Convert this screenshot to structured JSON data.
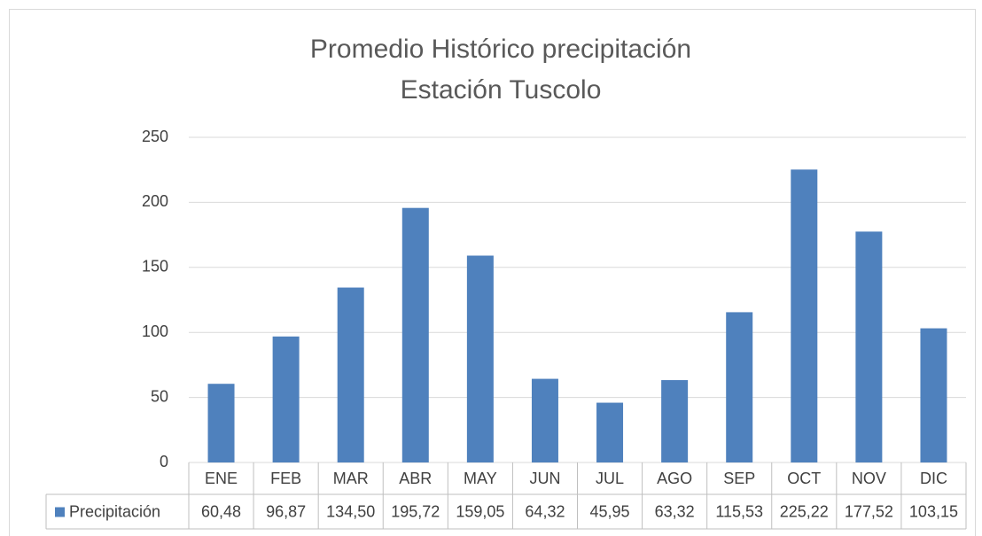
{
  "chart_data": {
    "type": "bar",
    "title_lines": [
      "Promedio Histórico precipitación",
      "Estación Tuscolo"
    ],
    "categories": [
      "ENE",
      "FEB",
      "MAR",
      "ABR",
      "MAY",
      "JUN",
      "JUL",
      "AGO",
      "SEP",
      "OCT",
      "NOV",
      "DIC"
    ],
    "series": [
      {
        "name": "Precipitación",
        "color": "#4f81bd",
        "values": [
          60.48,
          96.87,
          134.5,
          195.72,
          159.05,
          64.32,
          45.95,
          63.32,
          115.53,
          225.22,
          177.52,
          103.15
        ],
        "value_labels": [
          "60,48",
          "96,87",
          "134,50",
          "195,72",
          "159,05",
          "64,32",
          "45,95",
          "63,32",
          "115,53",
          "225,22",
          "177,52",
          "103,15"
        ]
      }
    ],
    "ylim": [
      0,
      250
    ],
    "yticks": [
      0,
      50,
      100,
      150,
      200,
      250
    ],
    "grid": true,
    "data_table": true
  }
}
